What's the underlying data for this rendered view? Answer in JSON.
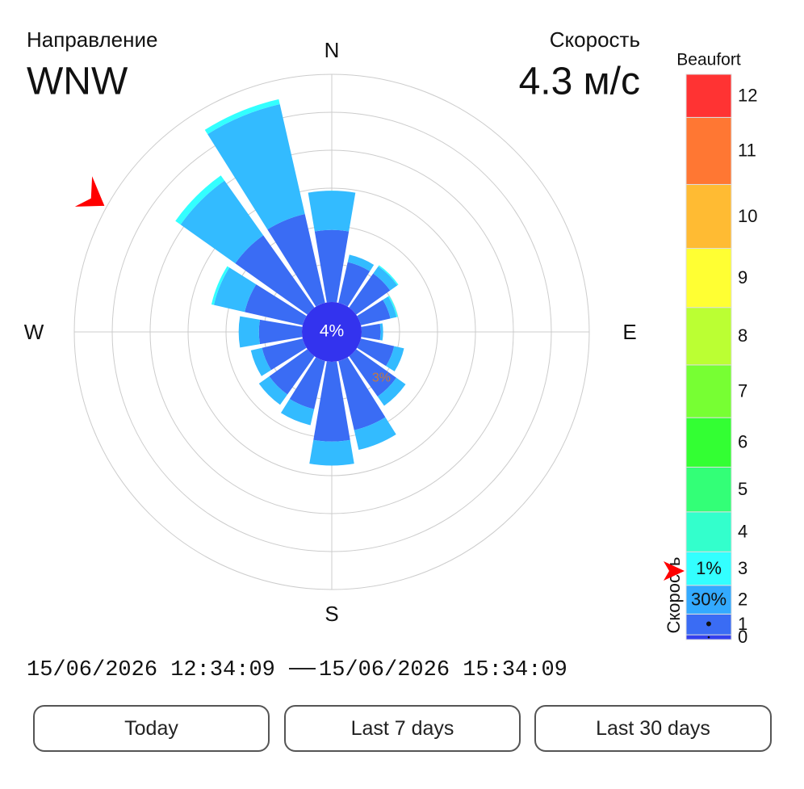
{
  "direction_label": "Направление",
  "direction": "WNW",
  "speed_label": "Скорость",
  "speed": {
    "value": 4.3,
    "label": "4.3 м/с"
  },
  "chart_data": {
    "type": "windrose",
    "categories": [
      "N",
      null,
      null,
      null,
      "E",
      null,
      null,
      null,
      "S",
      null,
      null,
      null,
      "W",
      null,
      null,
      null
    ],
    "calm": {
      "value": 4,
      "label": "4%"
    },
    "calm_color": "#3333ee",
    "rlim": [
      0,
      18
    ],
    "rticks": [
      3,
      6,
      9,
      12,
      15,
      18
    ],
    "rtick_labels": [
      {
        "value": 3,
        "label": "3%"
      }
    ],
    "series": [
      {
        "level": 1,
        "color": "#3a6cf4",
        "values": [
          5.7,
          3.3,
          3.3,
          2.4,
          1.5,
          2.7,
          3.9,
          5.6,
          6.3,
          3.9,
          3.7,
          3.3,
          3.4,
          4.7,
          7.0,
          7.2
        ]
      },
      {
        "level": 2,
        "color": "#33bbff",
        "values": [
          3.1,
          0.6,
          0.7,
          0.5,
          0.2,
          0.8,
          0.9,
          1.6,
          1.9,
          1.3,
          1.0,
          0.9,
          1.6,
          2.5,
          5.3,
          8.9
        ]
      },
      {
        "level": 3,
        "color": "#33ffff",
        "values": [
          0,
          0,
          0.1,
          0.1,
          0,
          0,
          0,
          0,
          0,
          0,
          0,
          0,
          0,
          0.2,
          0.5,
          0.4
        ]
      }
    ]
  },
  "legend": {
    "title": "Beaufort",
    "axis_label": "Скорость",
    "levels": [
      0,
      1,
      2,
      3,
      4,
      5,
      6,
      7,
      8,
      9,
      10,
      11,
      12
    ],
    "colors": [
      "#3340ee",
      "#3a6cf4",
      "#33aaff",
      "#33ffff",
      "#33ffcc",
      "#33ff77",
      "#33ff33",
      "#77ff33",
      "#bbff33",
      "#ffff33",
      "#ffbb33",
      "#ff7733",
      "#ff3333"
    ],
    "bounds": [
      0,
      0.3,
      1.6,
      3.4,
      5.5,
      8.0,
      10.8,
      13.9,
      17.2,
      20.8,
      24.5,
      28.5,
      32.7,
      35.4
    ],
    "share_labels": [
      "•",
      "•",
      "30%",
      "1%",
      null,
      null,
      null,
      null,
      null,
      null,
      null,
      null,
      null
    ],
    "shares": [
      null,
      null,
      30,
      1,
      null,
      null,
      null,
      null,
      null,
      null,
      null,
      null,
      null
    ]
  },
  "date_range": {
    "start": "15/06/2026 12:34:09",
    "end": "15/06/2026 15:34:09"
  },
  "buttons": [
    "Today",
    "Last 7 days",
    "Last 30 days"
  ]
}
